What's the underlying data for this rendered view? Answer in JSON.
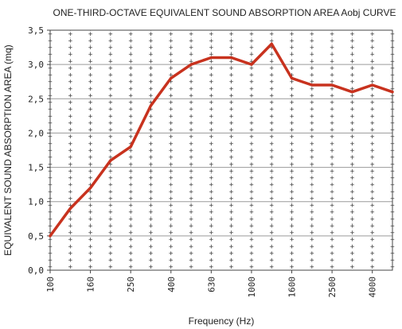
{
  "chart_data": {
    "type": "line",
    "title": "ONE-THIRD-OCTAVE EQUIVALENT SOUND ABSORPTION AREA Aobj CURVE",
    "xlabel": "Frequency (Hz)",
    "ylabel": "EQUIVALENT SOUND ABSORPTION AREA (mq)",
    "x": [
      100,
      125,
      160,
      200,
      250,
      315,
      400,
      500,
      630,
      800,
      1000,
      1250,
      1600,
      2000,
      2500,
      3150,
      4000,
      5000
    ],
    "x_tick_labels": [
      "100",
      "160",
      "250",
      "400",
      "630",
      "1000",
      "1600",
      "2500",
      "4000"
    ],
    "y_tick_labels": [
      "0,0",
      "0,5",
      "1,0",
      "1,5",
      "2,0",
      "2,5",
      "3,0",
      "3,5"
    ],
    "ylim": [
      0,
      3.5
    ],
    "series": [
      {
        "values": [
          0.5,
          0.9,
          1.2,
          1.6,
          1.8,
          2.4,
          2.8,
          3.0,
          3.1,
          3.1,
          3.0,
          3.3,
          2.8,
          2.7,
          2.7,
          2.6,
          2.7,
          2.6
        ]
      }
    ],
    "grid": true,
    "line_color": "#c8321e"
  }
}
